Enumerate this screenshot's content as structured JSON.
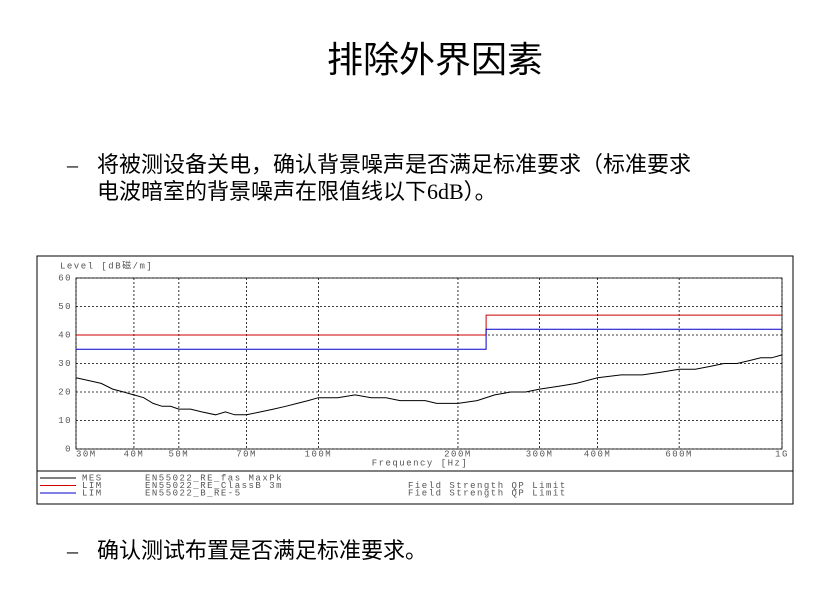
{
  "slide": {
    "title": "排除外界因素",
    "bullet_marker": "–",
    "bullets": [
      {
        "lines": [
          "将被测设备关电，确认背景噪声是否满足标准要求（标准要求",
          "电波暗室的背景噪声在限值线以下6dB）。"
        ]
      },
      {
        "lines": [
          "确认测试布置是否满足标准要求。"
        ]
      }
    ]
  },
  "chart_data": {
    "type": "line",
    "y_label": "Level [dB磁/m]",
    "x_label": "Frequency [Hz]",
    "log_x": true,
    "grid": true,
    "xlim": [
      30000000,
      1000000000
    ],
    "ylim": [
      0,
      60
    ],
    "xticks": [
      {
        "value": 30000000,
        "label": "30M"
      },
      {
        "value": 40000000,
        "label": "40M"
      },
      {
        "value": 50000000,
        "label": "50M"
      },
      {
        "value": 70000000,
        "label": "70M"
      },
      {
        "value": 100000000,
        "label": "100M"
      },
      {
        "value": 200000000,
        "label": "200M"
      },
      {
        "value": 300000000,
        "label": "300M"
      },
      {
        "value": 400000000,
        "label": "400M"
      },
      {
        "value": 600000000,
        "label": "600M"
      },
      {
        "value": 1000000000,
        "label": "1G"
      }
    ],
    "yticks": [
      0,
      10,
      20,
      30,
      40,
      50,
      60
    ],
    "series": [
      {
        "kind": "MES",
        "name": "EN55022_RE_fas MaxPk",
        "color": "#000000",
        "x": [
          30000000,
          32000000,
          34000000,
          36000000,
          38000000,
          40000000,
          42000000,
          44000000,
          46000000,
          48000000,
          50000000,
          53000000,
          56000000,
          60000000,
          63000000,
          66000000,
          70000000,
          75000000,
          80000000,
          85000000,
          90000000,
          95000000,
          100000000,
          110000000,
          120000000,
          130000000,
          140000000,
          150000000,
          160000000,
          170000000,
          180000000,
          190000000,
          200000000,
          220000000,
          240000000,
          260000000,
          280000000,
          300000000,
          330000000,
          360000000,
          400000000,
          450000000,
          500000000,
          550000000,
          600000000,
          650000000,
          700000000,
          750000000,
          800000000,
          850000000,
          900000000,
          950000000,
          1000000000
        ],
        "values": [
          25,
          24,
          23,
          21,
          20,
          19,
          18,
          16,
          15,
          15,
          14,
          14,
          13,
          12,
          13,
          12,
          12,
          13,
          14,
          15,
          16,
          17,
          18,
          18,
          19,
          18,
          18,
          17,
          17,
          17,
          16,
          16,
          16,
          17,
          19,
          20,
          20,
          21,
          22,
          23,
          25,
          26,
          26,
          27,
          28,
          28,
          29,
          30,
          30,
          31,
          32,
          32,
          33
        ]
      },
      {
        "kind": "LIM",
        "name": "EN55022_RE_ClassB 3m",
        "description": "Field Strength QP Limit",
        "color": "#cc0000",
        "x": [
          30000000,
          230000000,
          230000000,
          1000000000
        ],
        "values": [
          40,
          40,
          47,
          47
        ]
      },
      {
        "kind": "LIM",
        "name": "EN55022_B_RE-5",
        "description": "Field Strength QP Limit",
        "color": "#0000cc",
        "x": [
          30000000,
          230000000,
          230000000,
          1000000000
        ],
        "values": [
          35,
          35,
          42,
          42
        ]
      }
    ]
  }
}
